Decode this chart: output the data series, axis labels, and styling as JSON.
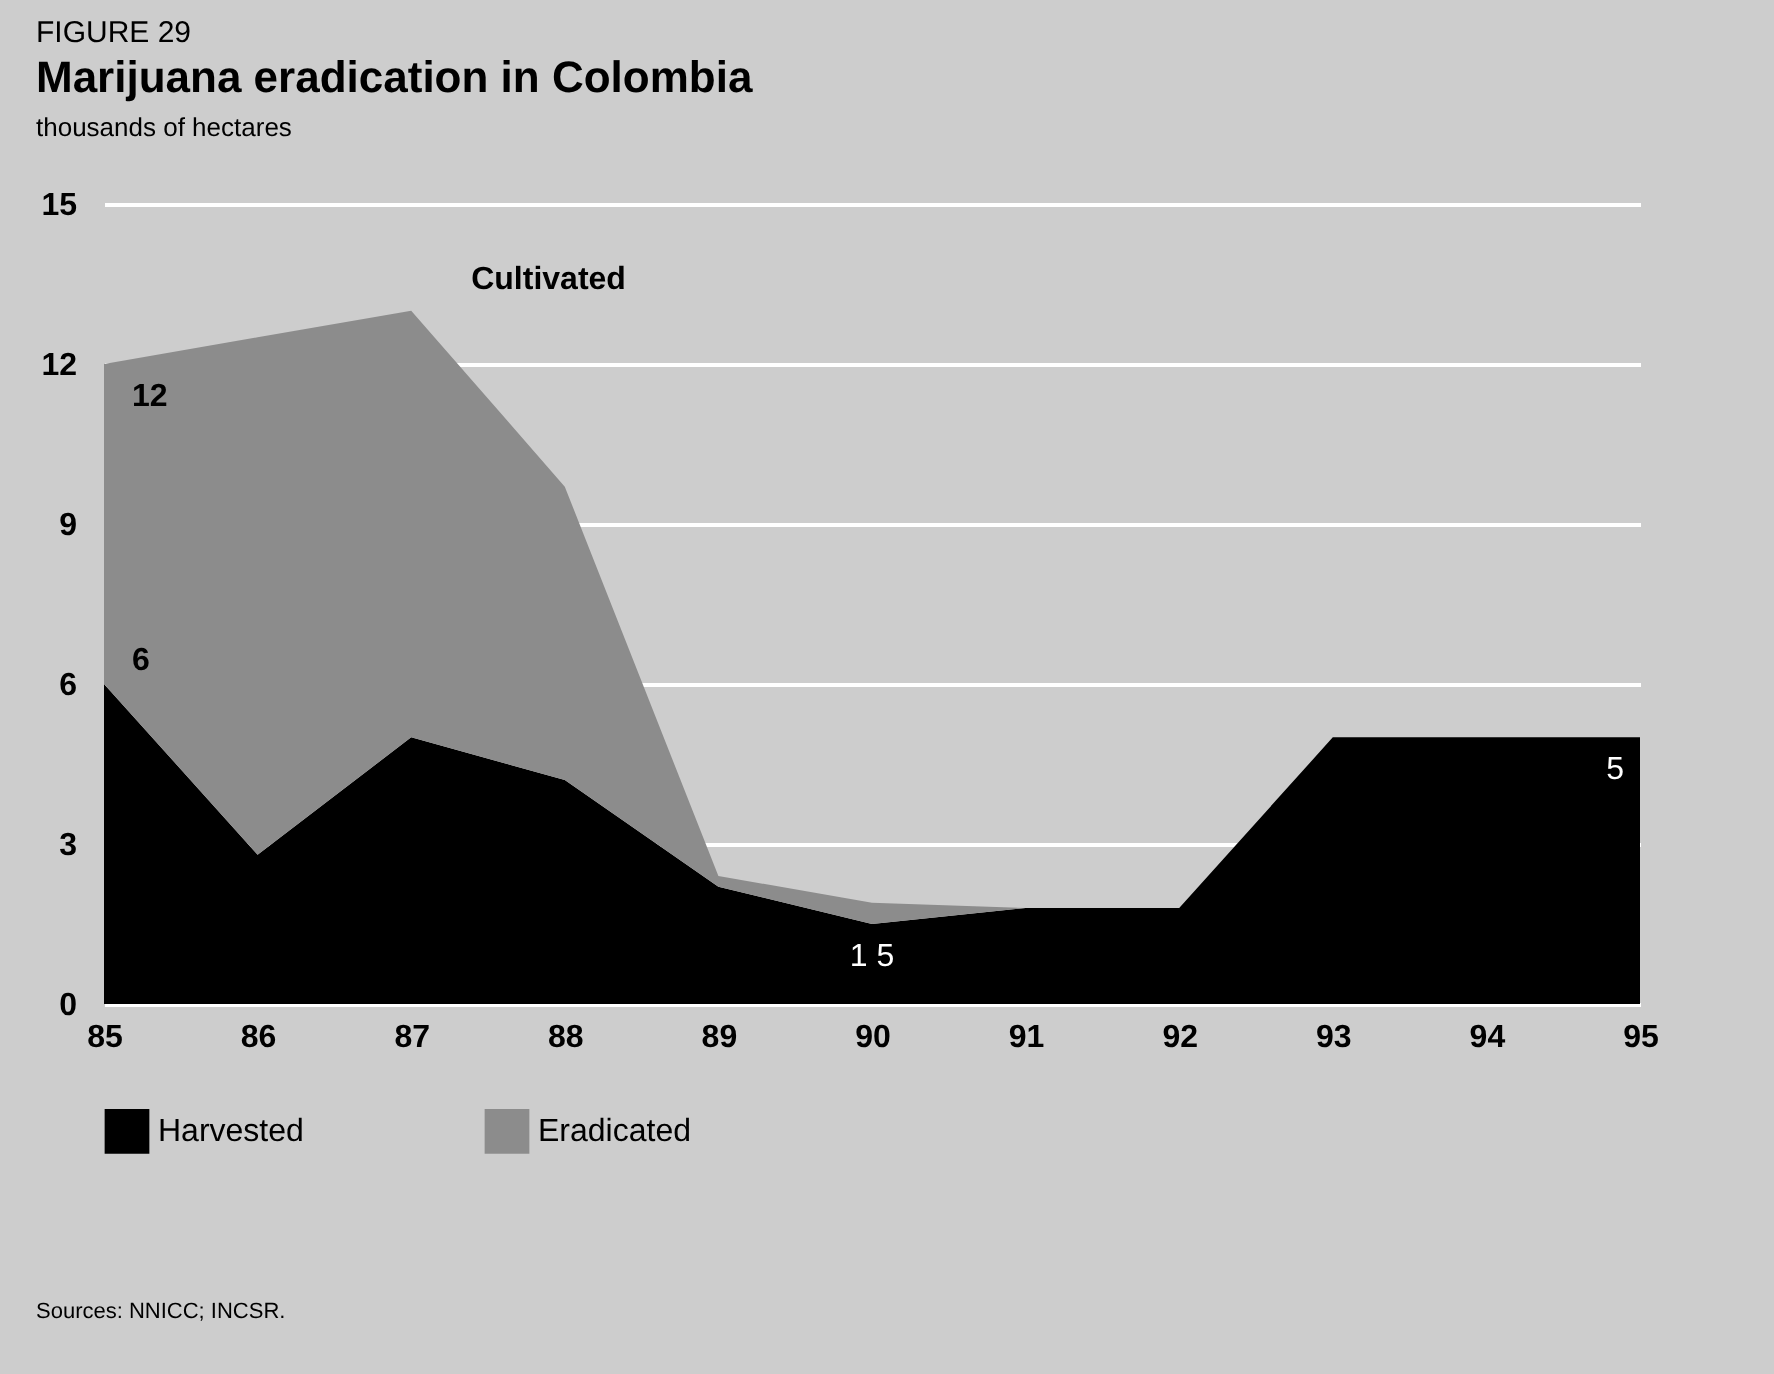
{
  "chart_data": {
    "type": "area",
    "title": "Marijuana eradication in Colombia",
    "subtitle": "FIGURE 29",
    "ylabel": "thousands of hectares",
    "categories": [
      "85",
      "86",
      "87",
      "88",
      "89",
      "90",
      "91",
      "92",
      "93",
      "94",
      "95"
    ],
    "stacked": true,
    "series": [
      {
        "name": "Harvested",
        "color": "#000000",
        "values": [
          6,
          2.8,
          5,
          4.2,
          2.2,
          1.5,
          1.8,
          1.8,
          5,
          5,
          5
        ],
        "value_labels": [
          "6",
          null,
          null,
          null,
          null,
          "1 5",
          null,
          null,
          null,
          null,
          "5"
        ]
      },
      {
        "name": "Eradicated",
        "color": "#8c8c8c",
        "values": [
          6,
          9.7,
          8,
          5.5,
          0.2,
          0.4,
          0,
          0,
          0,
          0,
          0
        ]
      }
    ],
    "ylim": [
      0,
      15
    ],
    "yticks": [
      0,
      3,
      6,
      9,
      12,
      15
    ],
    "grid": "y",
    "legend": "bottom",
    "annotations": [
      {
        "text": "12",
        "x": "85",
        "y": 12
      },
      {
        "text": "Cultivated",
        "x": "87",
        "y": 13
      },
      "Sources: NNICC; INCSR."
    ]
  }
}
